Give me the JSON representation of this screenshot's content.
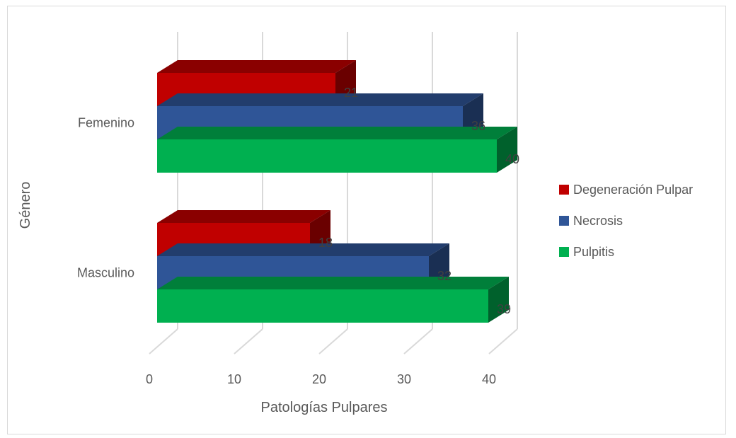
{
  "chart_data": {
    "type": "bar",
    "orientation": "horizontal",
    "three_d": true,
    "title": "",
    "xlabel": "Patologías Pulpares",
    "ylabel": "Género",
    "xlim": [
      0,
      40
    ],
    "xticks": [
      "0",
      "10",
      "20",
      "30",
      "40"
    ],
    "grid": true,
    "legend_position": "right",
    "categories": [
      "Femenino",
      "Masculino"
    ],
    "series": [
      {
        "name": "Degeneración Pulpar",
        "color": "#c00000",
        "values": [
          21,
          18
        ]
      },
      {
        "name": "Necrosis",
        "color": "#2f5597",
        "values": [
          36,
          32
        ]
      },
      {
        "name": "Pulpitis",
        "color": "#00b050",
        "values": [
          40,
          39
        ]
      }
    ]
  }
}
